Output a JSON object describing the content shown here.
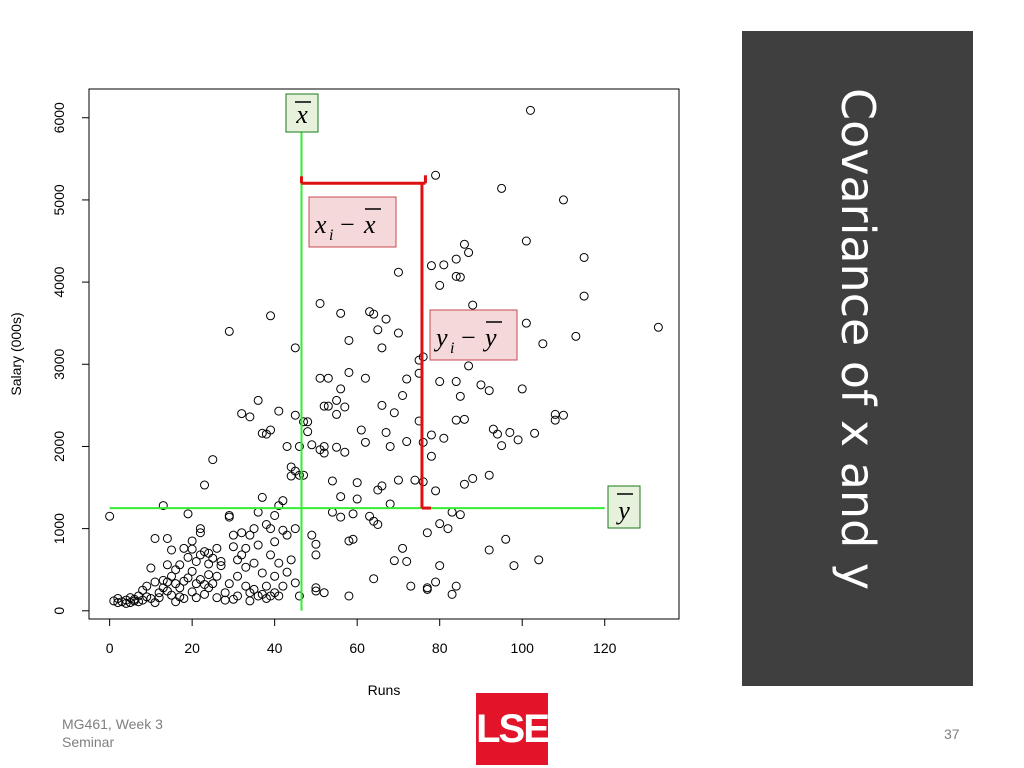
{
  "slide": {
    "title": "Covariance of x and y",
    "footer_line1": "MG461, Week 3",
    "footer_line2": "Seminar",
    "page_number": "37",
    "logo_text": "LSE",
    "title_panel_color": "#3f3f3f",
    "logo_color": "#e3132a"
  },
  "chart_data": {
    "type": "scatter",
    "xlabel": "Runs",
    "ylabel": "Salary (000s)",
    "xlim": [
      -5,
      138
    ],
    "ylim": [
      -100,
      6350
    ],
    "x_ticks": [
      0,
      20,
      40,
      60,
      80,
      100,
      120
    ],
    "y_ticks": [
      0,
      1000,
      2000,
      3000,
      4000,
      5000,
      6000
    ],
    "grid": false,
    "legend": "none",
    "mean_line_color": "#33ee33",
    "deviation_color": "#dd1111",
    "label_box_fill_mean": "#e6f2dc",
    "label_box_fill_dev": "#f4d8da",
    "mean_x": 46.5,
    "mean_y": 1250,
    "highlight_point": {
      "x": 78,
      "y": 5300
    },
    "annotations": {
      "xbar_label": {
        "base": "x"
      },
      "ybar_label": {
        "base": "y"
      },
      "x_dev_label": {
        "base": "x",
        "sub": "i",
        "op": "−",
        "bar": "x"
      },
      "y_dev_label": {
        "base": "y",
        "sub": "i",
        "op": "−",
        "bar": "y"
      }
    },
    "points": [
      [
        0,
        1150
      ],
      [
        1,
        120
      ],
      [
        2,
        100
      ],
      [
        2,
        150
      ],
      [
        3,
        110
      ],
      [
        4,
        130
      ],
      [
        4,
        90
      ],
      [
        5,
        160
      ],
      [
        5,
        100
      ],
      [
        6,
        120
      ],
      [
        6,
        140
      ],
      [
        7,
        110
      ],
      [
        7,
        180
      ],
      [
        8,
        250
      ],
      [
        8,
        130
      ],
      [
        9,
        300
      ],
      [
        9,
        170
      ],
      [
        10,
        150
      ],
      [
        10,
        520
      ],
      [
        11,
        100
      ],
      [
        11,
        350
      ],
      [
        11,
        880
      ],
      [
        12,
        220
      ],
      [
        12,
        160
      ],
      [
        13,
        280
      ],
      [
        13,
        370
      ],
      [
        13,
        1280
      ],
      [
        14,
        350
      ],
      [
        14,
        240
      ],
      [
        14,
        880
      ],
      [
        14,
        560
      ],
      [
        15,
        190
      ],
      [
        15,
        740
      ],
      [
        15,
        420
      ],
      [
        16,
        500
      ],
      [
        16,
        330
      ],
      [
        16,
        110
      ],
      [
        17,
        560
      ],
      [
        17,
        170
      ],
      [
        17,
        280
      ],
      [
        18,
        360
      ],
      [
        18,
        760
      ],
      [
        18,
        150
      ],
      [
        19,
        1180
      ],
      [
        19,
        400
      ],
      [
        19,
        650
      ],
      [
        20,
        230
      ],
      [
        20,
        480
      ],
      [
        20,
        850
      ],
      [
        20,
        750
      ],
      [
        21,
        330
      ],
      [
        21,
        600
      ],
      [
        21,
        160
      ],
      [
        22,
        950
      ],
      [
        22,
        380
      ],
      [
        22,
        680
      ],
      [
        22,
        1000
      ],
      [
        23,
        720
      ],
      [
        23,
        320
      ],
      [
        23,
        200
      ],
      [
        23,
        1530
      ],
      [
        24,
        700
      ],
      [
        24,
        570
      ],
      [
        24,
        280
      ],
      [
        24,
        440
      ],
      [
        25,
        1840
      ],
      [
        25,
        330
      ],
      [
        25,
        640
      ],
      [
        26,
        420
      ],
      [
        26,
        160
      ],
      [
        26,
        760
      ],
      [
        27,
        600
      ],
      [
        27,
        550
      ],
      [
        28,
        220
      ],
      [
        28,
        130
      ],
      [
        29,
        330
      ],
      [
        29,
        1160
      ],
      [
        29,
        1140
      ],
      [
        29,
        3400
      ],
      [
        30,
        140
      ],
      [
        30,
        920
      ],
      [
        30,
        780
      ],
      [
        31,
        420
      ],
      [
        31,
        180
      ],
      [
        31,
        620
      ],
      [
        32,
        680
      ],
      [
        32,
        2400
      ],
      [
        32,
        950
      ],
      [
        33,
        300
      ],
      [
        33,
        760
      ],
      [
        33,
        530
      ],
      [
        34,
        220
      ],
      [
        34,
        2360
      ],
      [
        34,
        920
      ],
      [
        34,
        120
      ],
      [
        35,
        1000
      ],
      [
        35,
        580
      ],
      [
        35,
        260
      ],
      [
        36,
        2560
      ],
      [
        36,
        180
      ],
      [
        36,
        800
      ],
      [
        36,
        1200
      ],
      [
        37,
        2160
      ],
      [
        37,
        1380
      ],
      [
        37,
        200
      ],
      [
        37,
        460
      ],
      [
        38,
        2150
      ],
      [
        38,
        1050
      ],
      [
        38,
        300
      ],
      [
        38,
        150
      ],
      [
        39,
        3590
      ],
      [
        39,
        2200
      ],
      [
        39,
        1000
      ],
      [
        39,
        680
      ],
      [
        39,
        180
      ],
      [
        40,
        1160
      ],
      [
        40,
        420
      ],
      [
        40,
        220
      ],
      [
        40,
        840
      ],
      [
        41,
        2430
      ],
      [
        41,
        1280
      ],
      [
        41,
        580
      ],
      [
        41,
        180
      ],
      [
        42,
        1340
      ],
      [
        42,
        980
      ],
      [
        42,
        300
      ],
      [
        43,
        2000
      ],
      [
        43,
        920
      ],
      [
        43,
        470
      ],
      [
        44,
        1750
      ],
      [
        44,
        1640
      ],
      [
        44,
        620
      ],
      [
        45,
        3200
      ],
      [
        45,
        2380
      ],
      [
        45,
        1700
      ],
      [
        45,
        1000
      ],
      [
        45,
        340
      ],
      [
        46,
        2000
      ],
      [
        46,
        1650
      ],
      [
        46,
        180
      ],
      [
        47,
        1650
      ],
      [
        47,
        2300
      ],
      [
        48,
        2300
      ],
      [
        48,
        2180
      ],
      [
        49,
        920
      ],
      [
        49,
        2020
      ],
      [
        50,
        680
      ],
      [
        50,
        810
      ],
      [
        50,
        280
      ],
      [
        50,
        240
      ],
      [
        51,
        2830
      ],
      [
        51,
        1960
      ],
      [
        51,
        3740
      ],
      [
        52,
        1920
      ],
      [
        52,
        2000
      ],
      [
        52,
        2490
      ],
      [
        52,
        220
      ],
      [
        53,
        2830
      ],
      [
        53,
        2490
      ],
      [
        54,
        1200
      ],
      [
        54,
        1580
      ],
      [
        55,
        2390
      ],
      [
        55,
        2560
      ],
      [
        55,
        1990
      ],
      [
        56,
        3620
      ],
      [
        56,
        2700
      ],
      [
        56,
        1390
      ],
      [
        56,
        1140
      ],
      [
        57,
        2480
      ],
      [
        57,
        1930
      ],
      [
        58,
        850
      ],
      [
        58,
        2900
      ],
      [
        58,
        3290
      ],
      [
        58,
        180
      ],
      [
        59,
        1180
      ],
      [
        59,
        870
      ],
      [
        60,
        1360
      ],
      [
        60,
        1560
      ],
      [
        61,
        2200
      ],
      [
        62,
        2830
      ],
      [
        62,
        2050
      ],
      [
        63,
        1150
      ],
      [
        63,
        3640
      ],
      [
        64,
        3610
      ],
      [
        64,
        1090
      ],
      [
        64,
        390
      ],
      [
        65,
        3420
      ],
      [
        65,
        1470
      ],
      [
        65,
        1050
      ],
      [
        66,
        3200
      ],
      [
        66,
        2500
      ],
      [
        66,
        1520
      ],
      [
        67,
        3550
      ],
      [
        67,
        2170
      ],
      [
        68,
        2000
      ],
      [
        68,
        1300
      ],
      [
        69,
        2410
      ],
      [
        69,
        610
      ],
      [
        70,
        4120
      ],
      [
        70,
        3380
      ],
      [
        70,
        1590
      ],
      [
        71,
        2620
      ],
      [
        71,
        760
      ],
      [
        72,
        2820
      ],
      [
        72,
        2060
      ],
      [
        72,
        600
      ],
      [
        73,
        300
      ],
      [
        74,
        1590
      ],
      [
        75,
        3050
      ],
      [
        75,
        2890
      ],
      [
        75,
        2310
      ],
      [
        76,
        3090
      ],
      [
        76,
        1570
      ],
      [
        76,
        2050
      ],
      [
        77,
        950
      ],
      [
        77,
        280
      ],
      [
        77,
        260
      ],
      [
        78,
        4200
      ],
      [
        78,
        2140
      ],
      [
        78,
        1880
      ],
      [
        79,
        5300
      ],
      [
        79,
        1460
      ],
      [
        79,
        350
      ],
      [
        80,
        3960
      ],
      [
        80,
        2790
      ],
      [
        80,
        1060
      ],
      [
        80,
        550
      ],
      [
        81,
        4210
      ],
      [
        81,
        2100
      ],
      [
        82,
        3530
      ],
      [
        82,
        1000
      ],
      [
        83,
        3130
      ],
      [
        83,
        1200
      ],
      [
        83,
        200
      ],
      [
        84,
        4280
      ],
      [
        84,
        4070
      ],
      [
        84,
        2790
      ],
      [
        84,
        2320
      ],
      [
        84,
        300
      ],
      [
        85,
        4060
      ],
      [
        85,
        2610
      ],
      [
        85,
        1170
      ],
      [
        86,
        4460
      ],
      [
        86,
        3290
      ],
      [
        86,
        2330
      ],
      [
        86,
        1540
      ],
      [
        87,
        4360
      ],
      [
        87,
        2980
      ],
      [
        88,
        3720
      ],
      [
        88,
        1610
      ],
      [
        89,
        3350
      ],
      [
        90,
        2750
      ],
      [
        91,
        3110
      ],
      [
        92,
        2680
      ],
      [
        92,
        1650
      ],
      [
        92,
        740
      ],
      [
        93,
        2210
      ],
      [
        94,
        2150
      ],
      [
        95,
        5140
      ],
      [
        95,
        2010
      ],
      [
        96,
        870
      ],
      [
        97,
        2170
      ],
      [
        98,
        550
      ],
      [
        99,
        2080
      ],
      [
        100,
        2700
      ],
      [
        101,
        4500
      ],
      [
        101,
        3500
      ],
      [
        102,
        6090
      ],
      [
        103,
        2160
      ],
      [
        104,
        620
      ],
      [
        105,
        3250
      ],
      [
        108,
        2390
      ],
      [
        108,
        2320
      ],
      [
        110,
        5000
      ],
      [
        110,
        2380
      ],
      [
        113,
        3340
      ],
      [
        115,
        4300
      ],
      [
        115,
        3830
      ],
      [
        133,
        3450
      ]
    ]
  }
}
